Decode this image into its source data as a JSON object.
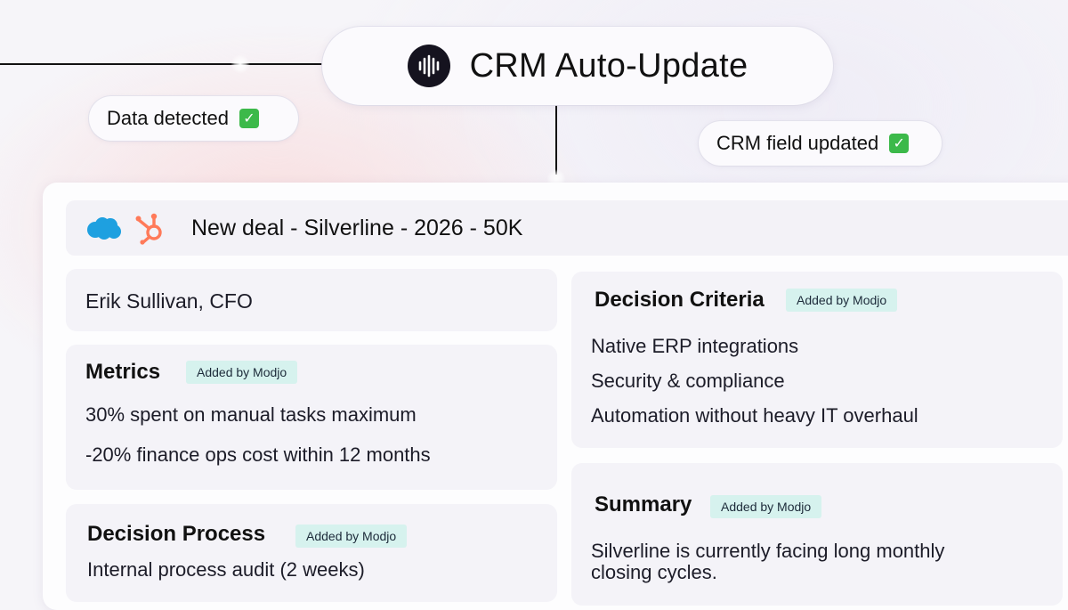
{
  "header": {
    "title": "CRM Auto-Update",
    "logo_icon": "soundwave-icon"
  },
  "badges": {
    "data_detected": "Data detected",
    "crm_field_updated": "CRM field updated",
    "check_icon": "check-mark-icon",
    "check_color": "#3cb94a"
  },
  "deal": {
    "title": "New deal - Silverline - 2026 - 50K",
    "crm_icons": [
      "salesforce-icon",
      "hubspot-icon"
    ],
    "salesforce_color": "#1ea0e0",
    "hubspot_color": "#ff7a59"
  },
  "contact": {
    "name": "Erik Sullivan, CFO"
  },
  "tag_label": "Added by Modjo",
  "tag_color": "#d6f2ee",
  "metrics": {
    "title": "Metrics",
    "items": [
      "30% spent on manual tasks maximum",
      "-20% finance ops cost within 12 months"
    ]
  },
  "decision_process": {
    "title": "Decision Process",
    "items": [
      "Internal process audit (2 weeks)"
    ]
  },
  "decision_criteria": {
    "title": "Decision Criteria",
    "items": [
      "Native ERP integrations",
      "Security & compliance",
      "Automation without heavy IT overhaul"
    ]
  },
  "summary": {
    "title": "Summary",
    "text_lines": [
      "Silverline is currently facing long monthly",
      "closing cycles."
    ]
  }
}
